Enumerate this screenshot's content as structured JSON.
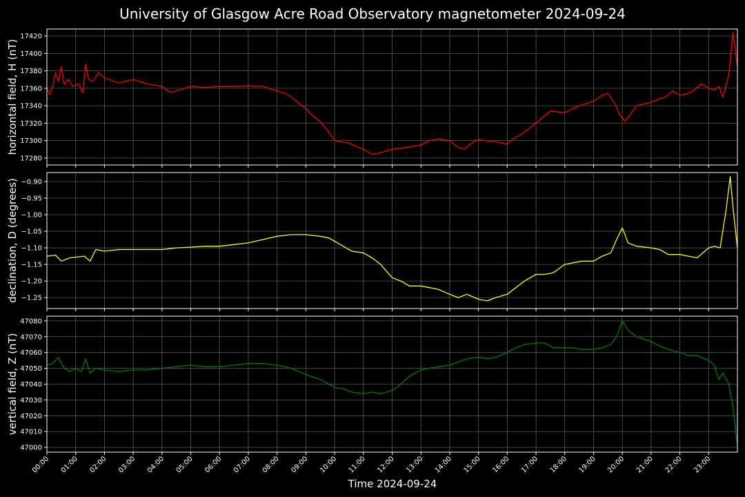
{
  "title": "University of Glasgow Acre Road Observatory magnetometer 2024-09-24",
  "xlabel": "Time 2024-09-24",
  "colors": {
    "background": "#000000",
    "grid": "#5a5a5a",
    "axes": "#ffffff"
  },
  "chart_data": [
    {
      "type": "line",
      "ylabel": "horizontal field, H (nT)",
      "color": "#ff0000",
      "ylim": [
        17272,
        17428
      ],
      "yticks": [
        17280,
        17300,
        17320,
        17340,
        17360,
        17380,
        17400,
        17420
      ],
      "yticklabels": [
        "17280",
        "17300",
        "17320",
        "17340",
        "17360",
        "17380",
        "17400",
        "17420"
      ],
      "xlim": [
        0,
        24
      ],
      "grid": true,
      "series": [
        {
          "x": [
            0,
            0.1,
            0.2,
            0.3,
            0.4,
            0.5,
            0.6,
            0.75,
            0.9,
            1.1,
            1.25,
            1.35,
            1.45,
            1.6,
            1.8,
            2,
            2.5,
            3,
            3.5,
            4,
            4.3,
            4.6,
            5,
            5.5,
            6,
            6.5,
            7,
            7.5,
            8,
            8.3,
            8.5,
            8.75,
            9,
            9.25,
            9.5,
            9.75,
            10,
            10.5,
            11,
            11.3,
            11.6,
            12,
            12.5,
            13,
            13.3,
            13.6,
            14,
            14.3,
            14.5,
            14.8,
            15,
            15.5,
            16,
            16.2,
            16.5,
            16.8,
            17,
            17.5,
            18,
            18.5,
            19,
            19.3,
            19.5,
            19.75,
            19.9,
            20.1,
            20.5,
            21,
            21.3,
            21.5,
            21.75,
            22,
            22.3,
            22.5,
            22.75,
            23,
            23.2,
            23.35,
            23.5,
            23.7,
            23.85,
            24
          ],
          "y": [
            17360,
            17353,
            17362,
            17378,
            17368,
            17385,
            17364,
            17370,
            17362,
            17365,
            17355,
            17388,
            17370,
            17368,
            17378,
            17372,
            17366,
            17370,
            17365,
            17362,
            17355,
            17358,
            17362,
            17361,
            17362,
            17362,
            17363,
            17362,
            17357,
            17354,
            17350,
            17343,
            17337,
            17328,
            17322,
            17312,
            17300,
            17297,
            17290,
            17284,
            17286,
            17290,
            17292,
            17295,
            17300,
            17302,
            17300,
            17292,
            17290,
            17298,
            17301,
            17299,
            17296,
            17302,
            17307,
            17315,
            17320,
            17334,
            17332,
            17340,
            17345,
            17352,
            17354,
            17342,
            17330,
            17322,
            17340,
            17344,
            17348,
            17350,
            17357,
            17352,
            17354,
            17358,
            17365,
            17360,
            17358,
            17362,
            17350,
            17375,
            17424,
            17385
          ]
        }
      ]
    },
    {
      "type": "line",
      "ylabel": "declination, D (degrees)",
      "color": "#ffff00",
      "ylim": [
        -1.283,
        -0.873
      ],
      "yticks": [
        -1.25,
        -1.2,
        -1.15,
        -1.1,
        -1.05,
        -1.0,
        -0.95,
        -0.9
      ],
      "yticklabels": [
        "−1.25",
        "−1.20",
        "−1.15",
        "−1.10",
        "−1.05",
        "−1.00",
        "−0.95",
        "−0.90"
      ],
      "xlim": [
        0,
        24
      ],
      "grid": true,
      "series": [
        {
          "x": [
            0,
            0.3,
            0.5,
            0.8,
            1,
            1.3,
            1.5,
            1.7,
            2,
            2.5,
            3,
            3.5,
            4,
            4.5,
            5,
            5.5,
            6,
            6.5,
            7,
            7.5,
            8,
            8.5,
            9,
            9.5,
            9.8,
            10,
            10.3,
            10.6,
            11,
            11.3,
            11.6,
            12,
            12.3,
            12.6,
            13,
            13.3,
            13.6,
            14,
            14.3,
            14.6,
            15,
            15.3,
            15.6,
            16,
            16.3,
            16.6,
            17,
            17.3,
            17.6,
            18,
            18.3,
            18.6,
            19,
            19.3,
            19.6,
            19.8,
            20,
            20.2,
            20.5,
            21,
            21.3,
            21.6,
            22,
            22.3,
            22.6,
            23,
            23.2,
            23.4,
            23.6,
            23.75,
            23.85,
            24
          ],
          "y": [
            -1.125,
            -1.122,
            -1.14,
            -1.13,
            -1.128,
            -1.125,
            -1.14,
            -1.105,
            -1.11,
            -1.105,
            -1.105,
            -1.105,
            -1.105,
            -1.1,
            -1.098,
            -1.095,
            -1.095,
            -1.09,
            -1.085,
            -1.075,
            -1.065,
            -1.06,
            -1.06,
            -1.065,
            -1.07,
            -1.08,
            -1.095,
            -1.11,
            -1.115,
            -1.13,
            -1.15,
            -1.19,
            -1.2,
            -1.215,
            -1.215,
            -1.22,
            -1.225,
            -1.24,
            -1.25,
            -1.24,
            -1.255,
            -1.26,
            -1.25,
            -1.24,
            -1.22,
            -1.2,
            -1.18,
            -1.18,
            -1.175,
            -1.15,
            -1.145,
            -1.14,
            -1.14,
            -1.125,
            -1.115,
            -1.075,
            -1.04,
            -1.085,
            -1.095,
            -1.1,
            -1.105,
            -1.12,
            -1.12,
            -1.125,
            -1.13,
            -1.1,
            -1.095,
            -1.1,
            -0.99,
            -0.885,
            -0.98,
            -1.1
          ]
        }
      ]
    },
    {
      "type": "line",
      "ylabel": "vertical field, Z (nT)",
      "color": "#008000",
      "ylim": [
        46997,
        47083
      ],
      "yticks": [
        47000,
        47010,
        47020,
        47030,
        47040,
        47050,
        47060,
        47070,
        47080
      ],
      "yticklabels": [
        "47000",
        "47010",
        "47020",
        "47030",
        "47040",
        "47050",
        "47060",
        "47070",
        "47080"
      ],
      "xlim": [
        0,
        24
      ],
      "grid": true,
      "series": [
        {
          "x": [
            0,
            0.2,
            0.4,
            0.6,
            0.8,
            1,
            1.2,
            1.35,
            1.5,
            1.7,
            2,
            2.5,
            3,
            3.5,
            4,
            4.5,
            5,
            5.5,
            6,
            6.5,
            7,
            7.5,
            8,
            8.5,
            9,
            9.5,
            10,
            10.3,
            10.6,
            11,
            11.3,
            11.6,
            12,
            12.3,
            12.6,
            13,
            13.3,
            13.6,
            14,
            14.3,
            14.6,
            15,
            15.3,
            15.6,
            16,
            16.3,
            16.6,
            17,
            17.3,
            17.6,
            18,
            18.3,
            18.6,
            19,
            19.3,
            19.6,
            19.8,
            20,
            20.2,
            20.5,
            21,
            21.3,
            21.6,
            22,
            22.3,
            22.6,
            23,
            23.2,
            23.35,
            23.5,
            23.7,
            23.85,
            24
          ],
          "y": [
            47052,
            47053,
            47057,
            47050,
            47048,
            47050,
            47048,
            47056,
            47047,
            47050,
            47049,
            47048,
            47049,
            47049,
            47050,
            47051,
            47052,
            47051,
            47051,
            47052,
            47053,
            47053,
            47052,
            47050,
            47046,
            47043,
            47038,
            47037,
            47035,
            47034,
            47035,
            47034,
            47036,
            47040,
            47045,
            47049,
            47050,
            47051,
            47052,
            47054,
            47056,
            47057,
            47056,
            47057,
            47060,
            47063,
            47065,
            47066,
            47066,
            47063,
            47063,
            47063,
            47062,
            47062,
            47063,
            47065,
            47070,
            47080,
            47074,
            47070,
            47067,
            47064,
            47062,
            47060,
            47058,
            47058,
            47055,
            47052,
            47043,
            47047,
            47040,
            47025,
            47001
          ]
        }
      ]
    }
  ],
  "xaxis": {
    "ticks": [
      0,
      1,
      2,
      3,
      4,
      5,
      6,
      7,
      8,
      9,
      10,
      11,
      12,
      13,
      14,
      15,
      16,
      17,
      18,
      19,
      20,
      21,
      22,
      23
    ],
    "ticklabels": [
      "00:00",
      "01:00",
      "02:00",
      "03:00",
      "04:00",
      "05:00",
      "06:00",
      "07:00",
      "08:00",
      "09:00",
      "10:00",
      "11:00",
      "12:00",
      "13:00",
      "14:00",
      "15:00",
      "16:00",
      "17:00",
      "18:00",
      "19:00",
      "20:00",
      "21:00",
      "22:00",
      "23:00"
    ]
  }
}
